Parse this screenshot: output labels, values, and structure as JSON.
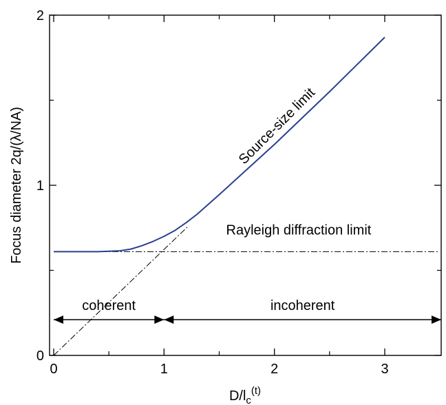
{
  "chart_data": {
    "type": "line",
    "xlabel": "D/l",
    "xlabel_sub": "c",
    "xlabel_sup": "(t)",
    "ylabel": "Focus diameter 2q/(λ/NA)",
    "xlim": [
      0,
      3.5
    ],
    "ylim": [
      0,
      2
    ],
    "x_ticks": [
      0,
      1,
      2,
      3
    ],
    "x_tick_labels": [
      "0",
      "1",
      "2",
      "3"
    ],
    "y_ticks": [
      0,
      1,
      2
    ],
    "y_tick_labels": [
      "0",
      "1",
      "2"
    ],
    "x_minor_ticks": [
      0.5,
      1.5,
      2.5
    ],
    "y_minor_ticks": [
      0.5,
      1.5
    ],
    "grid": false,
    "colors": {
      "curve": "#2a3f8f",
      "guide": "#000000"
    },
    "series": [
      {
        "style": "solid",
        "x": [
          0,
          0.2,
          0.4,
          0.6,
          0.7,
          0.8,
          0.9,
          1.0,
          1.1,
          1.2,
          1.3,
          1.5,
          2.0,
          2.5,
          3.0
        ],
        "y": [
          0.61,
          0.61,
          0.61,
          0.615,
          0.625,
          0.645,
          0.67,
          0.7,
          0.735,
          0.78,
          0.83,
          0.945,
          1.24,
          1.55,
          1.87
        ]
      },
      {
        "style": "dash-dot",
        "x": [
          0,
          1.22
        ],
        "y": [
          0,
          0.76
        ]
      },
      {
        "style": "dash-dot",
        "x": [
          0,
          3.5
        ],
        "y": [
          0.61,
          0.61
        ]
      }
    ],
    "region_arrows": [
      {
        "label": "coherent",
        "x_from": 0,
        "x_to": 1.0,
        "y": 0.21
      },
      {
        "label": "incoherent",
        "x_from": 1.0,
        "x_to": 3.5,
        "y": 0.21
      }
    ],
    "annotations": [
      {
        "text": "Source-size limit",
        "x": 2.05,
        "y": 1.33,
        "angle": -45
      },
      {
        "text": "Rayleigh diffraction limit",
        "x": 2.22,
        "y": 0.71
      }
    ]
  }
}
